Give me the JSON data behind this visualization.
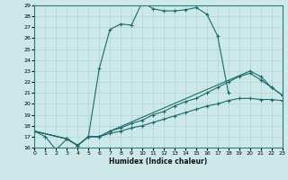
{
  "xlabel": "Humidex (Indice chaleur)",
  "ylabel": "",
  "bg_color": "#cde8e8",
  "line_color": "#1a6b6b",
  "grid_color": "#afd4d4",
  "xmin": 0,
  "xmax": 23,
  "ymin": 16,
  "ymax": 29,
  "lines": [
    {
      "x": [
        0,
        1,
        2,
        3,
        4,
        5,
        6,
        7,
        8,
        9,
        10,
        11,
        12,
        13,
        14,
        15,
        16,
        17,
        18
      ],
      "y": [
        17.5,
        17.0,
        15.8,
        16.8,
        16.2,
        17.0,
        23.2,
        26.8,
        27.3,
        27.2,
        29.3,
        28.7,
        28.5,
        28.5,
        28.6,
        28.8,
        28.2,
        26.2,
        21.0
      ]
    },
    {
      "x": [
        0,
        3,
        4,
        5,
        6,
        7,
        20,
        21,
        22,
        23
      ],
      "y": [
        17.5,
        16.8,
        16.2,
        17.0,
        17.0,
        17.5,
        23.0,
        22.5,
        21.5,
        20.8
      ]
    },
    {
      "x": [
        0,
        3,
        4,
        5,
        6,
        7,
        8,
        9,
        10,
        11,
        12,
        13,
        14,
        15,
        16,
        17,
        18,
        19,
        20,
        21,
        22,
        23
      ],
      "y": [
        17.5,
        16.8,
        16.2,
        17.0,
        17.0,
        17.5,
        17.8,
        18.2,
        18.5,
        19.0,
        19.3,
        19.8,
        20.2,
        20.5,
        21.0,
        21.5,
        22.0,
        22.5,
        22.8,
        22.2,
        21.5,
        20.8
      ]
    },
    {
      "x": [
        0,
        3,
        4,
        5,
        6,
        7,
        8,
        9,
        10,
        11,
        12,
        13,
        14,
        15,
        16,
        17,
        18,
        19,
        20,
        21,
        22,
        23
      ],
      "y": [
        17.5,
        16.8,
        16.2,
        17.0,
        17.0,
        17.3,
        17.5,
        17.8,
        18.0,
        18.3,
        18.6,
        18.9,
        19.2,
        19.5,
        19.8,
        20.0,
        20.3,
        20.5,
        20.5,
        20.4,
        20.4,
        20.3
      ]
    }
  ]
}
